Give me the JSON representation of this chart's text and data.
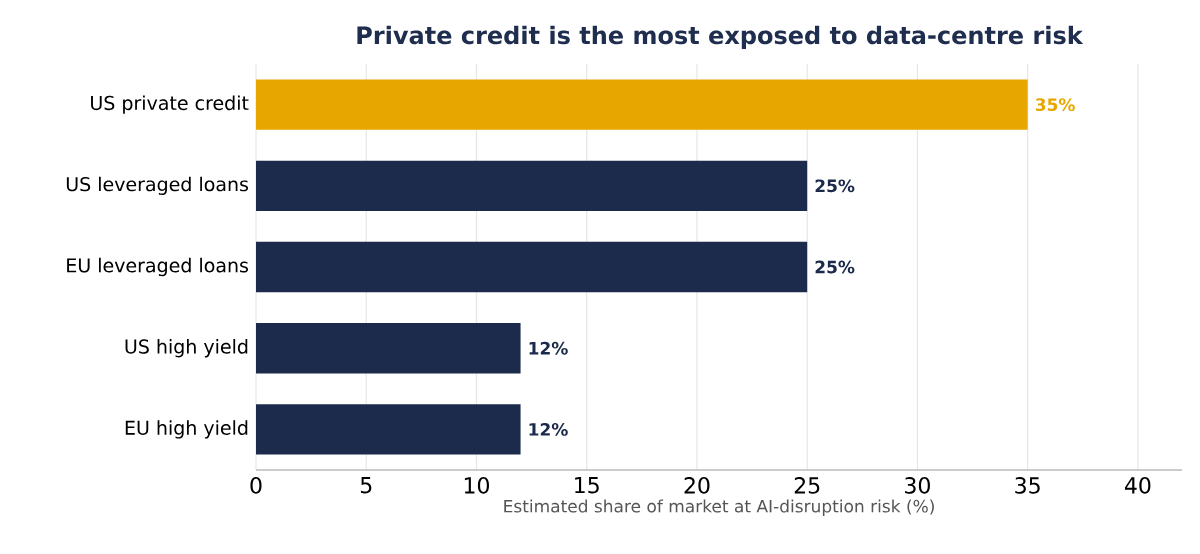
{
  "chart_data": {
    "type": "bar",
    "orientation": "horizontal",
    "title": "Private credit is the most exposed to data-centre risk",
    "xlabel": "Estimated share of market at AI-disruption risk (%)",
    "categories": [
      "US private credit",
      "US leveraged loans",
      "EU leveraged loans",
      "US high yield",
      "EU high yield"
    ],
    "values": [
      35,
      25,
      25,
      12,
      12
    ],
    "colors": [
      "#e8a600",
      "#1c2a4b",
      "#1c2a4b",
      "#1c2a4b",
      "#1c2a4b"
    ],
    "value_labels": [
      "35%",
      "25%",
      "25%",
      "12%",
      "12%"
    ],
    "xlim": [
      0,
      42
    ],
    "xticks": [
      0,
      5,
      10,
      15,
      20,
      25,
      30,
      35,
      40
    ],
    "grid": "x"
  }
}
